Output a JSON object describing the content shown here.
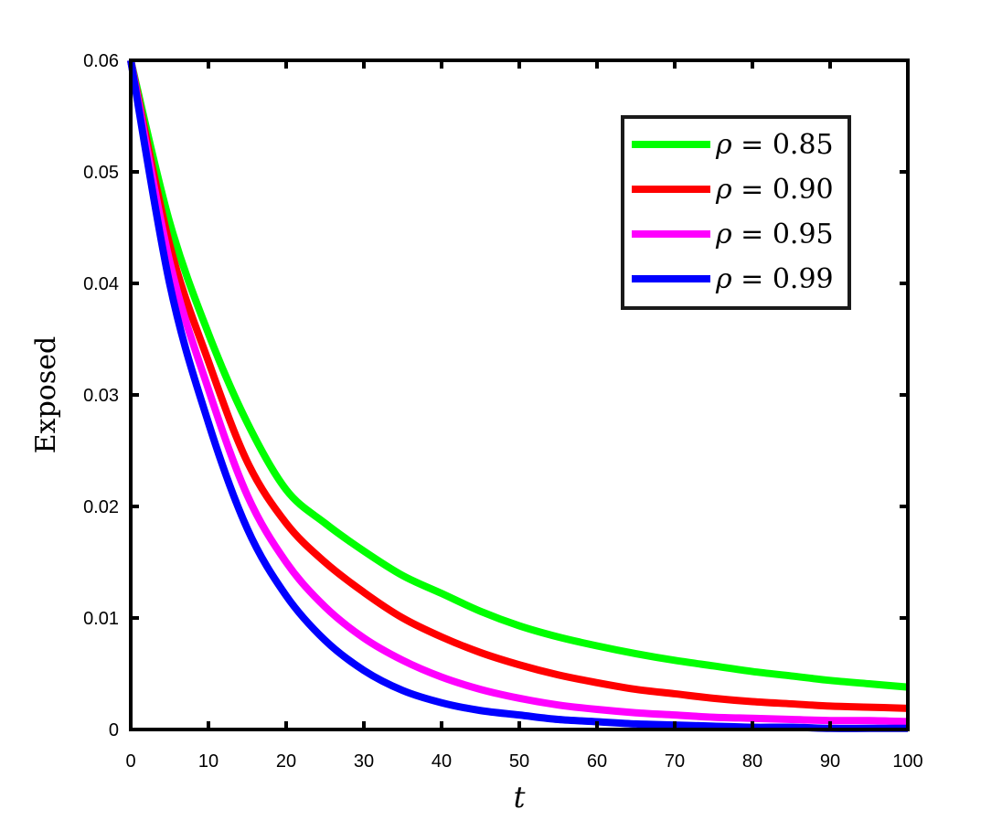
{
  "chart_data": {
    "type": "line",
    "xlabel": "t",
    "ylabel": "Exposed",
    "xlim": [
      0,
      100
    ],
    "ylim": [
      0,
      0.06
    ],
    "xticks": [
      0,
      10,
      20,
      30,
      40,
      50,
      60,
      70,
      80,
      90,
      100
    ],
    "xtick_labels": [
      "0",
      "10",
      "20",
      "30",
      "40",
      "50",
      "60",
      "70",
      "80",
      "90",
      "100"
    ],
    "yticks": [
      0,
      0.01,
      0.02,
      0.03,
      0.04,
      0.05,
      0.06
    ],
    "ytick_labels": [
      "0",
      "0.01",
      "0.02",
      "0.03",
      "0.04",
      "0.05",
      "0.06"
    ],
    "grid": false,
    "legend_position": "top-right",
    "x": [
      0,
      5,
      10,
      15,
      20,
      25,
      30,
      35,
      40,
      45,
      50,
      55,
      60,
      65,
      70,
      75,
      80,
      85,
      90,
      95,
      100
    ],
    "series": [
      {
        "name": "ρ = 0.85",
        "color": "#00ff00",
        "values": [
          0.06,
          0.0455,
          0.0355,
          0.0275,
          0.0215,
          0.0185,
          0.016,
          0.0138,
          0.0122,
          0.0106,
          0.0093,
          0.0083,
          0.0075,
          0.0068,
          0.0062,
          0.0057,
          0.0052,
          0.0048,
          0.0044,
          0.0041,
          0.0038
        ]
      },
      {
        "name": "ρ = 0.90",
        "color": "#ff0000",
        "values": [
          0.06,
          0.0435,
          0.033,
          0.024,
          0.0185,
          0.015,
          0.0123,
          0.01,
          0.0083,
          0.0069,
          0.0058,
          0.0049,
          0.0042,
          0.0036,
          0.0032,
          0.0028,
          0.0025,
          0.0023,
          0.0021,
          0.002,
          0.0019
        ]
      },
      {
        "name": "ρ = 0.95",
        "color": "#ff00ff",
        "values": [
          0.06,
          0.042,
          0.0305,
          0.021,
          0.015,
          0.011,
          0.0082,
          0.0062,
          0.0047,
          0.0036,
          0.0028,
          0.0022,
          0.0018,
          0.0015,
          0.0013,
          0.0011,
          0.001,
          0.0009,
          0.0008,
          0.0008,
          0.0007
        ]
      },
      {
        "name": "ρ = 0.99",
        "color": "#0000ff",
        "values": [
          0.06,
          0.04,
          0.0275,
          0.018,
          0.012,
          0.008,
          0.0053,
          0.0035,
          0.0024,
          0.0017,
          0.0013,
          0.0009,
          0.0007,
          0.0005,
          0.0004,
          0.0003,
          0.0002,
          0.0002,
          0.0001,
          0.0001,
          0.0001
        ]
      }
    ]
  }
}
